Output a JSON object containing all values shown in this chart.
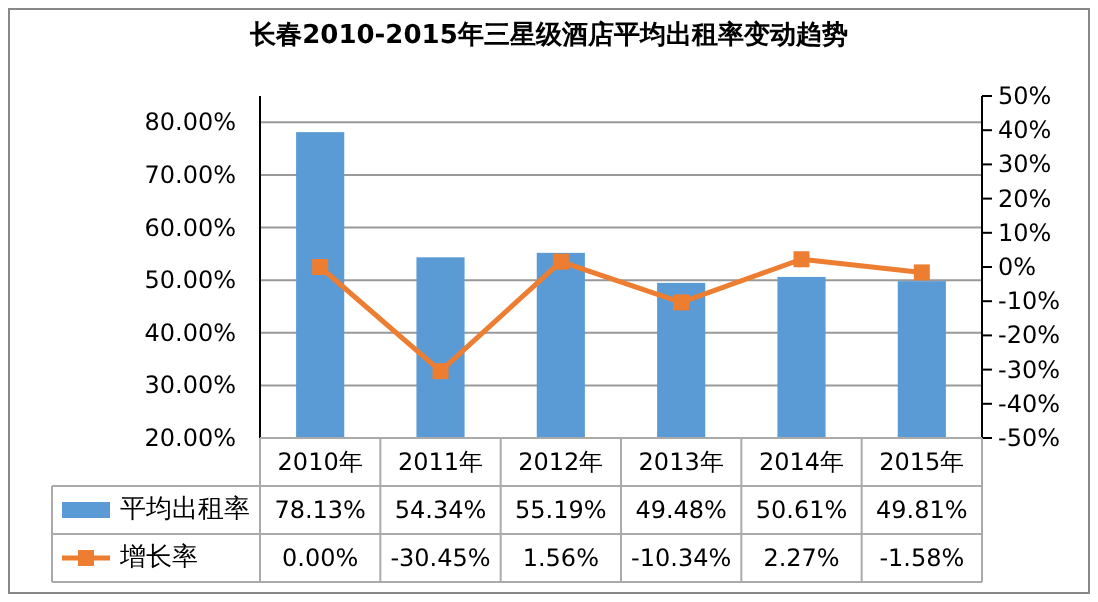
{
  "chart_data": {
    "type": "bar",
    "title": "长春2010-2015年三星级酒店平均出租率变动趋势",
    "categories": [
      "2010年",
      "2011年",
      "2012年",
      "2013年",
      "2014年",
      "2015年"
    ],
    "series": [
      {
        "name": "平均出租率",
        "color": "#5b9bd5",
        "values": [
          78.13,
          54.34,
          55.19,
          49.48,
          50.61,
          49.81
        ],
        "value_labels": [
          "78.13%",
          "54.34%",
          "55.19%",
          "49.48%",
          "50.61%",
          "49.81%"
        ]
      },
      {
        "name": "增长率",
        "type": "line",
        "axis": "y2",
        "color": "#ed7d31",
        "marker": "square",
        "values": [
          0.0,
          -30.45,
          1.56,
          -10.34,
          2.27,
          -1.58
        ],
        "value_labels": [
          "0.00%",
          "-30.45%",
          "1.56%",
          "-10.34%",
          "2.27%",
          "-1.58%"
        ]
      }
    ],
    "ylim": [
      20,
      85
    ],
    "yticks": [
      {
        "value": 20,
        "label": "20.00%"
      },
      {
        "value": 30,
        "label": "30.00%"
      },
      {
        "value": 40,
        "label": "40.00%"
      },
      {
        "value": 50,
        "label": "50.00%"
      },
      {
        "value": 60,
        "label": "60.00%"
      },
      {
        "value": 70,
        "label": "70.00%"
      },
      {
        "value": 80,
        "label": "80.00%"
      }
    ],
    "y2lim": [
      -50,
      50
    ],
    "y2ticks": [
      {
        "value": 50,
        "label": "50%"
      },
      {
        "value": 40,
        "label": "40%"
      },
      {
        "value": 30,
        "label": "30%"
      },
      {
        "value": 20,
        "label": "20%"
      },
      {
        "value": 10,
        "label": "10%"
      },
      {
        "value": 0,
        "label": "0%"
      },
      {
        "value": -10,
        "label": "-10%"
      },
      {
        "value": -20,
        "label": "-20%"
      },
      {
        "value": -30,
        "label": "-30%"
      },
      {
        "value": -40,
        "label": "-40%"
      },
      {
        "value": -50,
        "label": "-50%"
      }
    ],
    "grid": "y",
    "legend": "bottom"
  }
}
